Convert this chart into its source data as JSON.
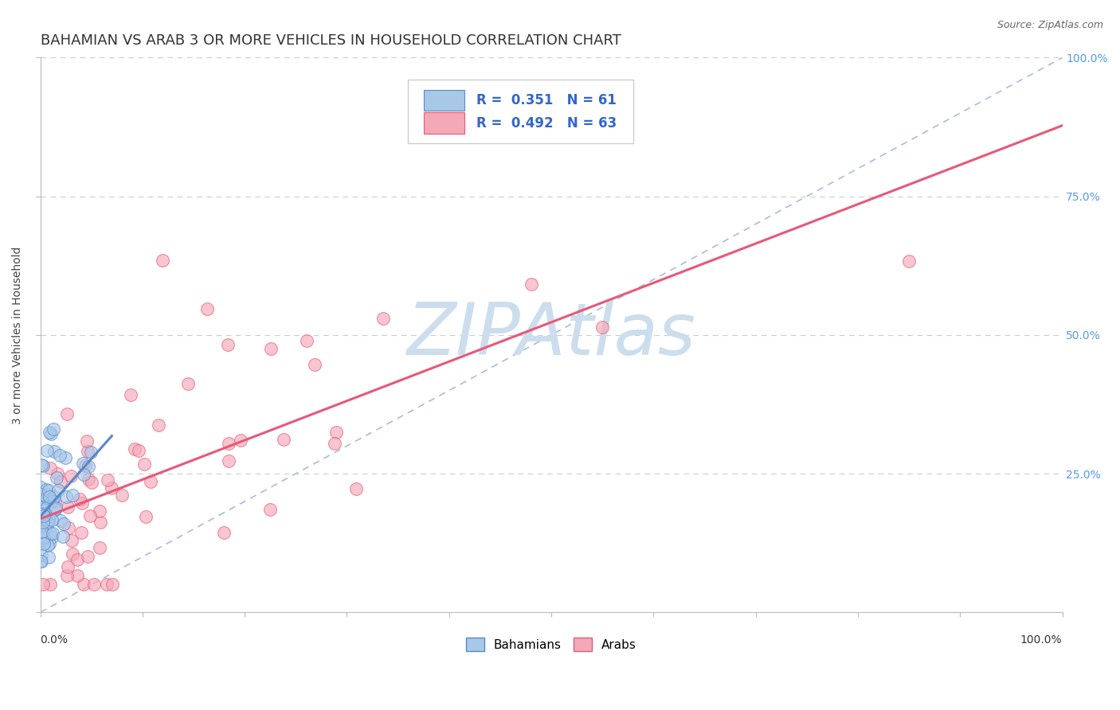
{
  "title": "BAHAMIAN VS ARAB 3 OR MORE VEHICLES IN HOUSEHOLD CORRELATION CHART",
  "source": "Source: ZipAtlas.com",
  "ylabel": "3 or more Vehicles in Household",
  "watermark": "ZIPAtlas",
  "bahamian_color": "#a8c8e8",
  "arab_color": "#f4a8b8",
  "bahamian_line_color": "#5588cc",
  "arab_line_color": "#e85878",
  "ref_line_color": "#aabbdd",
  "bahamian_R": 0.351,
  "bahamian_N": 61,
  "arab_R": 0.492,
  "arab_N": 63,
  "background_color": "#ffffff",
  "grid_color": "#cccccc",
  "title_fontsize": 13,
  "label_fontsize": 10,
  "tick_fontsize": 10,
  "watermark_color": "#ccdded",
  "watermark_fontsize": 65
}
